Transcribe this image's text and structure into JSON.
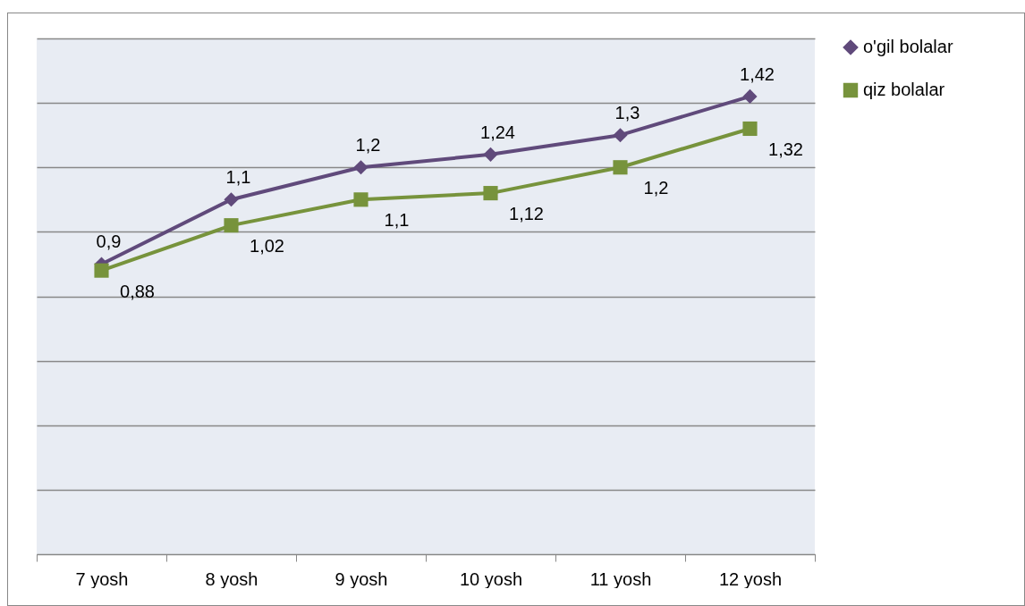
{
  "chart_data": {
    "type": "line",
    "categories": [
      "7 yosh",
      "8 yosh",
      "9 yosh",
      "10 yosh",
      "11 yosh",
      "12 yosh"
    ],
    "series": [
      {
        "name": "o'gil bolalar",
        "color": "#604a7b",
        "marker": "diamond",
        "values": [
          0.9,
          1.1,
          1.2,
          1.24,
          1.3,
          1.42
        ],
        "value_labels": [
          "0,9",
          "1,1",
          "1,2",
          "1,24",
          "1,3",
          "1,42"
        ]
      },
      {
        "name": "qiz bolalar",
        "color": "#77933c",
        "marker": "square",
        "values": [
          0.88,
          1.02,
          1.1,
          1.12,
          1.2,
          1.32
        ],
        "value_labels": [
          "0,88",
          "1,02",
          "1,1",
          "1,12",
          "1,2",
          "1,32"
        ]
      }
    ],
    "tick_labels": "x",
    "grid": "y",
    "legend": "right"
  }
}
